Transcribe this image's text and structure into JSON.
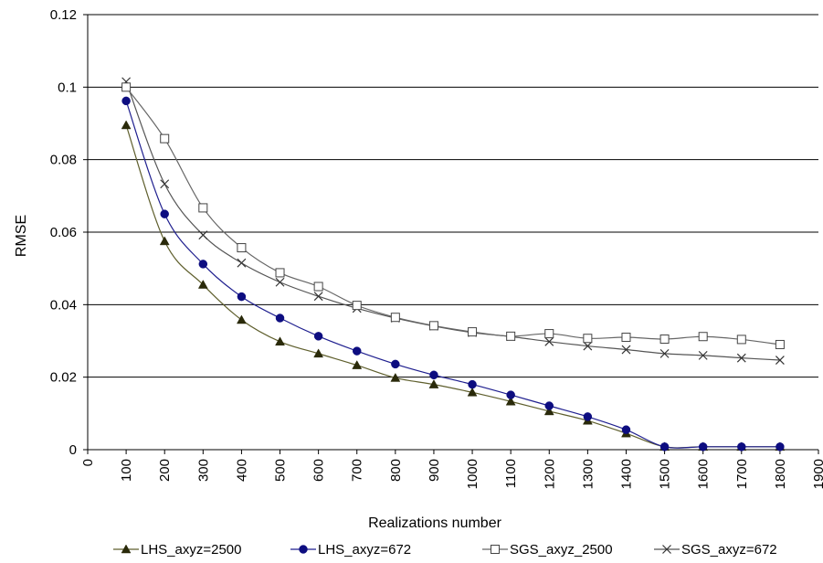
{
  "chart_data": {
    "type": "line",
    "title": "",
    "xlabel": "Realizations number",
    "ylabel": "RMSE",
    "xlim": [
      0,
      1900
    ],
    "ylim": [
      0,
      0.12
    ],
    "grid": "horizontal major gridlines",
    "legend_position": "bottom",
    "x_ticks": [
      "0",
      "100",
      "200",
      "300",
      "400",
      "500",
      "600",
      "700",
      "800",
      "900",
      "1000",
      "1100",
      "1200",
      "1300",
      "1400",
      "1500",
      "1600",
      "1700",
      "1800",
      "1900"
    ],
    "y_ticks": [
      "0",
      "0.02",
      "0.04",
      "0.06",
      "0.08",
      "0.1",
      "0.12"
    ],
    "x": [
      100,
      200,
      300,
      400,
      500,
      600,
      700,
      800,
      900,
      1000,
      1100,
      1200,
      1300,
      1400,
      1500,
      1600,
      1700,
      1800
    ],
    "series": [
      {
        "name": "LHS_axyz=2500",
        "color": "#5f5f2d",
        "marker": "filled-triangle",
        "values": [
          0.0895,
          0.0575,
          0.0455,
          0.0358,
          0.0298,
          0.0265,
          0.0233,
          0.0198,
          0.018,
          0.0158,
          0.0133,
          0.0106,
          0.008,
          0.0045,
          0.0008,
          0.0008,
          0.0008,
          0.0008
        ]
      },
      {
        "name": "LHS_axyz=672",
        "color": "#1f1f8f",
        "marker": "filled-circle",
        "values": [
          0.0962,
          0.065,
          0.0512,
          0.0422,
          0.0363,
          0.0313,
          0.0272,
          0.0236,
          0.0206,
          0.018,
          0.0151,
          0.0121,
          0.0091,
          0.0055,
          0.0008,
          0.0008,
          0.0008,
          0.0008
        ]
      },
      {
        "name": "SGS_axyz_2500",
        "color": "#666666",
        "marker": "open-square",
        "values": [
          0.1,
          0.0858,
          0.0667,
          0.0557,
          0.0488,
          0.045,
          0.0398,
          0.0365,
          0.0342,
          0.0325,
          0.0313,
          0.032,
          0.0307,
          0.031,
          0.0305,
          0.0312,
          0.0304,
          0.029
        ]
      },
      {
        "name": "SGS_axyz=672",
        "color": "#555555",
        "marker": "cross",
        "values": [
          0.1015,
          0.0733,
          0.0592,
          0.0515,
          0.0462,
          0.0423,
          0.039,
          0.0363,
          0.0341,
          0.0323,
          0.0312,
          0.0298,
          0.0286,
          0.0276,
          0.0265,
          0.026,
          0.0253,
          0.0247
        ]
      }
    ]
  }
}
